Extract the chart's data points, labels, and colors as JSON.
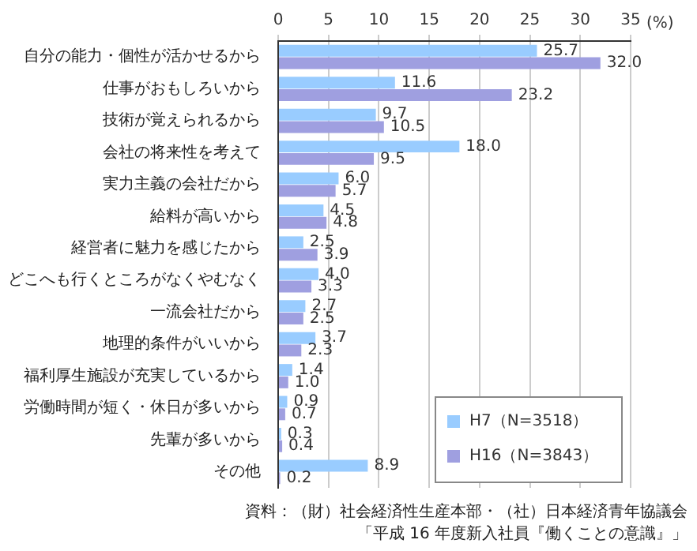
{
  "chart_data": {
    "type": "bar",
    "orientation": "horizontal",
    "xlabel": "(%)",
    "categories": [
      "自分の能力・個性が活かせるから",
      "仕事がおもしろいから",
      "技術が覚えられるから",
      "会社の将来性を考えて",
      "実力主義の会社だから",
      "給料が高いから",
      "経営者に魅力を感じたから",
      "どこへも行くところがなくやむなく",
      "一流会社だから",
      "地理的条件がいいから",
      "福利厚生施設が充実しているから",
      "労働時間が短く・休日が多いから",
      "先輩が多いから",
      "その他"
    ],
    "series": [
      {
        "name": "H7（N=3518）",
        "color": "#99ccff",
        "values": [
          25.7,
          11.6,
          9.7,
          18.0,
          6.0,
          4.5,
          2.5,
          4.0,
          2.7,
          3.7,
          1.4,
          0.9,
          0.3,
          8.9
        ],
        "value_labels": [
          "25.7",
          "11.6",
          "9.7",
          "18.0",
          "6.0",
          "4.5",
          "2.5",
          "4.0",
          "2.7",
          "3.7",
          "1.4",
          "0.9",
          "0.3",
          "8.9"
        ]
      },
      {
        "name": "H16（N=3843）",
        "color": "#9f9fe0",
        "values": [
          32.0,
          23.2,
          10.5,
          9.5,
          5.7,
          4.8,
          3.9,
          3.3,
          2.5,
          2.3,
          1.0,
          0.7,
          0.4,
          0.2
        ],
        "value_labels": [
          "32.0",
          "23.2",
          "10.5",
          "9.5",
          "5.7",
          "4.8",
          "3.9",
          "3.3",
          "2.5",
          "2.3",
          "1.0",
          "0.7",
          "0.4",
          "0.2"
        ]
      }
    ],
    "xlim": [
      0,
      35
    ],
    "xticks": [
      0,
      5,
      10,
      15,
      20,
      25,
      30,
      35
    ],
    "grid": "x",
    "legend": "bottom right",
    "annotations": [
      "資料：（財）社会経済性生産本部・（社）日本経済青年協議会",
      "「平成 16 年度新入社員『働くことの意識』」"
    ]
  }
}
